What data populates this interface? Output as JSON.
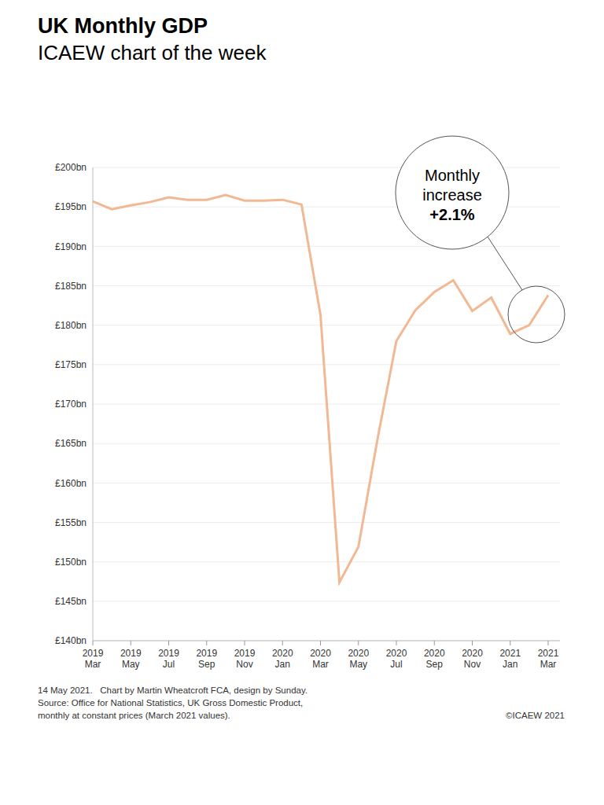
{
  "chart_data": {
    "type": "line",
    "title": "UK Monthly GDP",
    "subtitle": "ICAEW chart of the week",
    "categories": [
      "2019 Mar",
      null,
      "2019 May",
      null,
      "2019 Jul",
      null,
      "2019 Sep",
      null,
      "2019 Nov",
      null,
      "2020 Jan",
      null,
      "2020 Mar",
      null,
      "2020 May",
      null,
      "2020 Jul",
      null,
      "2020 Sep",
      null,
      "2020 Nov",
      null,
      "2021 Jan",
      null,
      "2021 Mar"
    ],
    "values": [
      195.7,
      194.7,
      195.2,
      195.6,
      196.2,
      195.9,
      195.9,
      196.5,
      195.8,
      195.8,
      195.9,
      195.3,
      181.3,
      147.4,
      151.9,
      165.5,
      178.0,
      181.9,
      184.2,
      185.7,
      181.8,
      183.5,
      178.9,
      180.0,
      183.8
    ],
    "color": "#f2b893",
    "ylim": [
      140,
      200
    ],
    "yticks": [
      {
        "value": 140,
        "label": "£140bn"
      },
      {
        "value": 145,
        "label": "£145bn"
      },
      {
        "value": 150,
        "label": "£150bn"
      },
      {
        "value": 155,
        "label": "£155bn"
      },
      {
        "value": 160,
        "label": "£160bn"
      },
      {
        "value": 165,
        "label": "£165bn"
      },
      {
        "value": 170,
        "label": "£170bn"
      },
      {
        "value": 175,
        "label": "£175bn"
      },
      {
        "value": 180,
        "label": "£180bn"
      },
      {
        "value": 185,
        "label": "£185bn"
      },
      {
        "value": 190,
        "label": "£190bn"
      },
      {
        "value": 195,
        "label": "£195bn"
      },
      {
        "value": 200,
        "label": "£200bn"
      }
    ],
    "grid": true,
    "annotation": {
      "text": "Monthly increase",
      "label": "+2.1%"
    },
    "footer": [
      "14 May 2021.   Chart by Martin Wheatcroft FCA, design by Sunday.",
      "Source: Office for National Statistics, UK Gross Domestic Product,",
      "monthly at constant prices (March 2021 values)."
    ],
    "copyright": "©ICAEW 2021"
  }
}
